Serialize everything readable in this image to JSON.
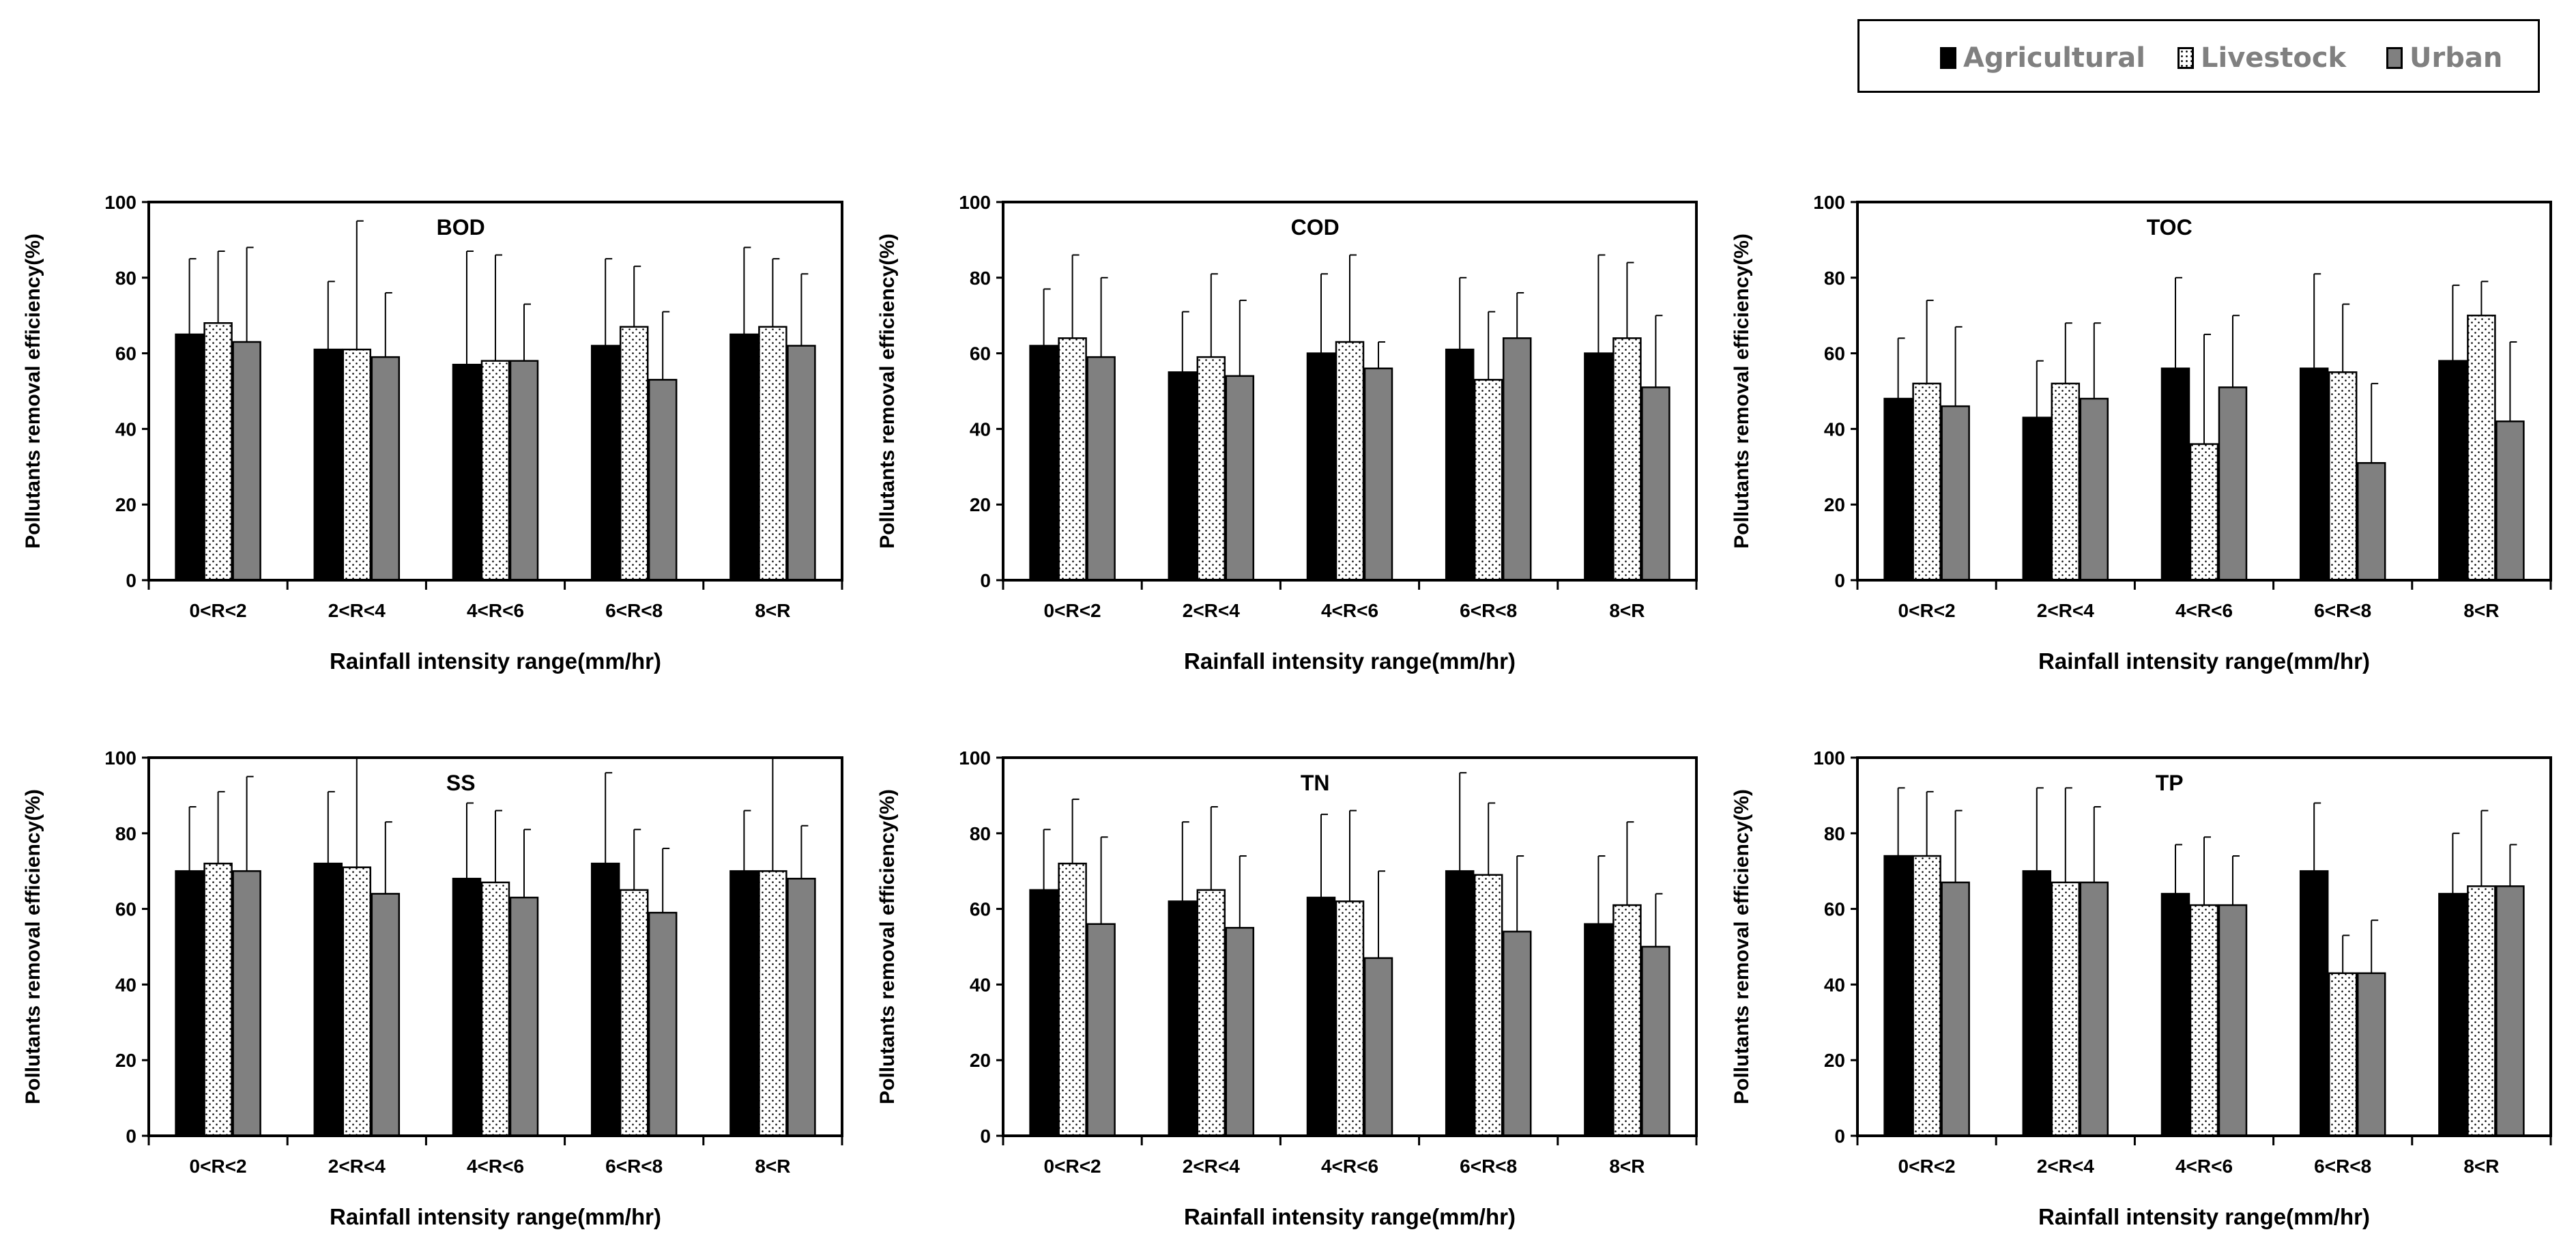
{
  "legend": {
    "items": [
      {
        "label": "Agricultural",
        "color": "#000000",
        "pattern": "solid"
      },
      {
        "label": "Livestock",
        "color": "#ffffff",
        "pattern": "dots"
      },
      {
        "label": "Urban",
        "color": "#808080",
        "pattern": "solid"
      }
    ]
  },
  "chart_data": [
    {
      "type": "bar",
      "title": "BOD",
      "categories": [
        "0<R<2",
        "2<R<4",
        "4<R<6",
        "6<R<8",
        "8<R"
      ],
      "xlabel": "Rainfall  intensity  range(mm/hr)",
      "ylabel": "Pollutants  removal efficiency(%)",
      "ylim": [
        0,
        100
      ],
      "yticks": [
        "0",
        "20",
        "40",
        "60",
        "80",
        "100"
      ],
      "series": [
        {
          "name": "Agricultural",
          "values": [
            65,
            61,
            57,
            62,
            65
          ],
          "errors": [
            20,
            18,
            30,
            23,
            23
          ]
        },
        {
          "name": "Livestock",
          "values": [
            68,
            61,
            58,
            67,
            67
          ],
          "errors": [
            19,
            34,
            28,
            16,
            18
          ]
        },
        {
          "name": "Urban",
          "values": [
            63,
            59,
            58,
            53,
            62
          ],
          "errors": [
            25,
            17,
            15,
            18,
            19
          ]
        }
      ]
    },
    {
      "type": "bar",
      "title": "COD",
      "categories": [
        "0<R<2",
        "2<R<4",
        "4<R<6",
        "6<R<8",
        "8<R"
      ],
      "xlabel": "Rainfall  intensity  range(mm/hr)",
      "ylabel": "Pollutants  removal efficiency(%)",
      "ylim": [
        0,
        100
      ],
      "yticks": [
        "0",
        "20",
        "40",
        "60",
        "80",
        "100"
      ],
      "series": [
        {
          "name": "Agricultural",
          "values": [
            62,
            55,
            60,
            61,
            60
          ],
          "errors": [
            15,
            16,
            21,
            19,
            26
          ]
        },
        {
          "name": "Livestock",
          "values": [
            64,
            59,
            63,
            53,
            64
          ],
          "errors": [
            22,
            22,
            23,
            18,
            20
          ]
        },
        {
          "name": "Urban",
          "values": [
            59,
            54,
            56,
            64,
            51
          ],
          "errors": [
            21,
            20,
            7,
            12,
            19
          ]
        }
      ]
    },
    {
      "type": "bar",
      "title": "TOC",
      "categories": [
        "0<R<2",
        "2<R<4",
        "4<R<6",
        "6<R<8",
        "8<R"
      ],
      "xlabel": "Rainfall  intensity  range(mm/hr)",
      "ylabel": "Pollutants  removal efficiency(%)",
      "ylim": [
        0,
        100
      ],
      "yticks": [
        "0",
        "20",
        "40",
        "60",
        "80",
        "100"
      ],
      "series": [
        {
          "name": "Agricultural",
          "values": [
            48,
            43,
            56,
            56,
            58
          ],
          "errors": [
            16,
            15,
            24,
            25,
            20
          ]
        },
        {
          "name": "Livestock",
          "values": [
            52,
            52,
            36,
            55,
            70
          ],
          "errors": [
            22,
            16,
            29,
            18,
            9
          ]
        },
        {
          "name": "Urban",
          "values": [
            46,
            48,
            51,
            31,
            42
          ],
          "errors": [
            21,
            20,
            19,
            21,
            21
          ]
        }
      ]
    },
    {
      "type": "bar",
      "title": "SS",
      "categories": [
        "0<R<2",
        "2<R<4",
        "4<R<6",
        "6<R<8",
        "8<R"
      ],
      "xlabel": "Rainfall  intensity  range(mm/hr)",
      "ylabel": "Pollutants  removal efficiency(%)",
      "ylim": [
        0,
        100
      ],
      "yticks": [
        "0",
        "20",
        "40",
        "60",
        "80",
        "100"
      ],
      "series": [
        {
          "name": "Agricultural",
          "values": [
            70,
            72,
            68,
            72,
            70
          ],
          "errors": [
            17,
            19,
            20,
            24,
            16
          ]
        },
        {
          "name": "Livestock",
          "values": [
            72,
            71,
            67,
            65,
            70
          ],
          "errors": [
            19,
            29,
            19,
            16,
            30
          ]
        },
        {
          "name": "Urban",
          "values": [
            70,
            64,
            63,
            59,
            68
          ],
          "errors": [
            25,
            19,
            18,
            17,
            14
          ]
        }
      ]
    },
    {
      "type": "bar",
      "title": "TN",
      "categories": [
        "0<R<2",
        "2<R<4",
        "4<R<6",
        "6<R<8",
        "8<R"
      ],
      "xlabel": "Rainfall  intensity  range(mm/hr)",
      "ylabel": "Pollutants  removal efficiency(%)",
      "ylim": [
        0,
        100
      ],
      "yticks": [
        "0",
        "20",
        "40",
        "60",
        "80",
        "100"
      ],
      "series": [
        {
          "name": "Agricultural",
          "values": [
            65,
            62,
            63,
            70,
            56
          ],
          "errors": [
            16,
            21,
            22,
            26,
            18
          ]
        },
        {
          "name": "Livestock",
          "values": [
            72,
            65,
            62,
            69,
            61
          ],
          "errors": [
            17,
            22,
            24,
            19,
            22
          ]
        },
        {
          "name": "Urban",
          "values": [
            56,
            55,
            47,
            54,
            50
          ],
          "errors": [
            23,
            19,
            23,
            20,
            14
          ]
        }
      ]
    },
    {
      "type": "bar",
      "title": "TP",
      "categories": [
        "0<R<2",
        "2<R<4",
        "4<R<6",
        "6<R<8",
        "8<R"
      ],
      "xlabel": "Rainfall  intensity  range(mm/hr)",
      "ylabel": "Pollutants  removal efficiency(%)",
      "ylim": [
        0,
        100
      ],
      "yticks": [
        "0",
        "20",
        "40",
        "60",
        "80",
        "100"
      ],
      "series": [
        {
          "name": "Agricultural",
          "values": [
            74,
            70,
            64,
            70,
            64
          ],
          "errors": [
            18,
            22,
            13,
            18,
            16
          ]
        },
        {
          "name": "Livestock",
          "values": [
            74,
            67,
            61,
            43,
            66
          ],
          "errors": [
            17,
            25,
            18,
            10,
            20
          ]
        },
        {
          "name": "Urban",
          "values": [
            67,
            67,
            61,
            43,
            66
          ],
          "errors": [
            19,
            20,
            13,
            14,
            11
          ]
        }
      ]
    }
  ]
}
